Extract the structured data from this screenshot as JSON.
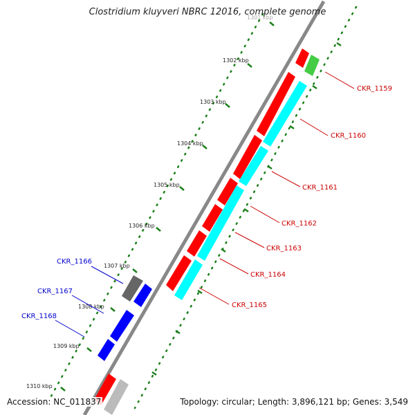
{
  "title": "Clostridium kluyveri NBRC 12016, complete genome",
  "top_cut_label": "1301 kbp",
  "footer": {
    "accession": "Accession: NC_011837",
    "summary": "Topology: circular; Length: 3,896,121 bp; Genes: 3,549"
  },
  "ticks": [
    "1302 kbp",
    "1303 kbp",
    "1304 kbp",
    "1305 kbp",
    "1306 kbp",
    "1307 kbp",
    "1308 kbp",
    "1309 kbp",
    "1310 kbp"
  ],
  "genes_right": [
    {
      "label": "CKR_1159",
      "color": "#cc0000"
    },
    {
      "label": "CKR_1160",
      "color": "#cc0000"
    },
    {
      "label": "CKR_1161",
      "color": "#cc0000"
    },
    {
      "label": "CKR_1162",
      "color": "#cc0000"
    },
    {
      "label": "CKR_1163",
      "color": "#cc0000"
    },
    {
      "label": "CKR_1164",
      "color": "#cc0000"
    },
    {
      "label": "CKR_1165",
      "color": "#cc0000"
    }
  ],
  "genes_left": [
    {
      "label": "CKR_1166",
      "color": "#0000cc"
    },
    {
      "label": "CKR_1167",
      "color": "#0000cc"
    },
    {
      "label": "CKR_1168",
      "color": "#0000cc"
    }
  ],
  "colors": {
    "forward_gene": "#ff0000",
    "coding_strand": "#00ffff",
    "rna_gene": "#44cc44",
    "reverse_gene": "#0000ff",
    "pseudo_gene": "#666666",
    "backbone": "#888888",
    "tick": "#1a7f1a"
  }
}
